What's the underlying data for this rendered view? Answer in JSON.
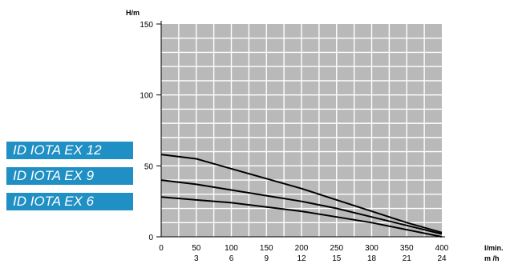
{
  "chart_data": {
    "type": "line",
    "ylabel": "H/m",
    "xlabel": "l/min.",
    "xlabel_secondary": "m /h",
    "xlim": [
      0,
      400
    ],
    "ylim": [
      0,
      150
    ],
    "x_ticks": [
      0,
      50,
      100,
      150,
      200,
      250,
      300,
      350,
      400
    ],
    "x_ticks_secondary": [
      "3",
      "6",
      "9",
      "12",
      "15",
      "18",
      "21",
      "24"
    ],
    "y_ticks": [
      0,
      50,
      100,
      150
    ],
    "grid": true,
    "legend_position": "left",
    "series": [
      {
        "name": "ID IOTA EX 12",
        "x": [
          0,
          50,
          100,
          150,
          200,
          250,
          300,
          350,
          400
        ],
        "y": [
          58,
          55,
          48,
          41,
          34,
          26,
          18,
          10,
          3
        ]
      },
      {
        "name": "ID IOTA EX 9",
        "x": [
          0,
          50,
          100,
          150,
          200,
          250,
          300,
          350,
          400
        ],
        "y": [
          40,
          37,
          33,
          29,
          25,
          20,
          14,
          8,
          2
        ]
      },
      {
        "name": "ID IOTA EX 6",
        "x": [
          0,
          50,
          100,
          150,
          200,
          250,
          300,
          350,
          400
        ],
        "y": [
          28,
          26,
          24,
          21,
          18,
          14,
          10,
          5,
          0
        ]
      }
    ]
  },
  "colors": {
    "plot_background": "#b9b9b9",
    "grid": "#ffffff",
    "line": "#000000",
    "legend_background": "#1f8fc4",
    "legend_text": "#ffffff"
  }
}
